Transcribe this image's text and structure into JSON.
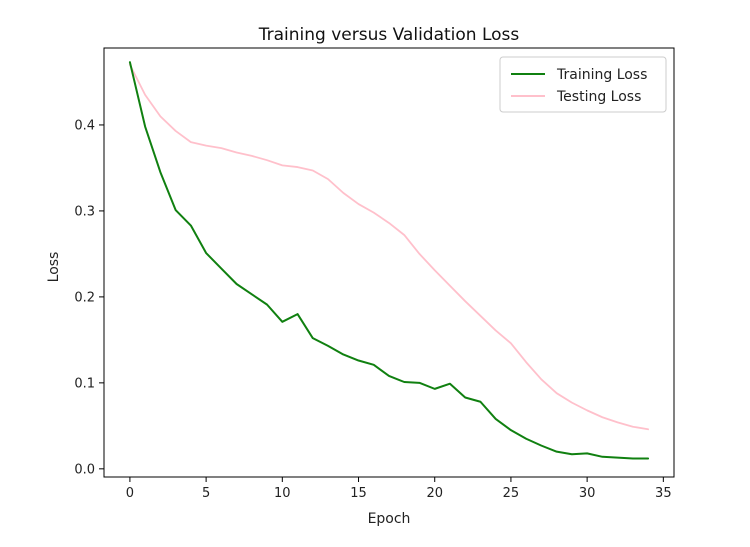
{
  "chart_data": {
    "type": "line",
    "title": "Training versus Validation Loss",
    "xlabel": "Epoch",
    "ylabel": "Loss",
    "xlim": [
      -1.7,
      35.7
    ],
    "ylim": [
      -0.0095,
      0.4895
    ],
    "xticks": [
      0,
      5,
      10,
      15,
      20,
      25,
      30,
      35
    ],
    "yticks": [
      0.0,
      0.1,
      0.2,
      0.3,
      0.4
    ],
    "ytick_labels": [
      "0.0",
      "0.1",
      "0.2",
      "0.3",
      "0.4"
    ],
    "grid": false,
    "legend_position": "top-right",
    "x": [
      0,
      1,
      2,
      3,
      4,
      5,
      6,
      7,
      8,
      9,
      10,
      11,
      12,
      13,
      14,
      15,
      16,
      17,
      18,
      19,
      20,
      21,
      22,
      23,
      24,
      25,
      26,
      27,
      28,
      29,
      30,
      31,
      32,
      33,
      34
    ],
    "series": [
      {
        "name": "Training Loss",
        "color": "#108010",
        "values": [
          0.473,
          0.398,
          0.345,
          0.301,
          0.283,
          0.251,
          0.233,
          0.215,
          0.203,
          0.191,
          0.171,
          0.18,
          0.152,
          0.143,
          0.133,
          0.126,
          0.121,
          0.108,
          0.101,
          0.1,
          0.093,
          0.099,
          0.083,
          0.078,
          0.058,
          0.045,
          0.035,
          0.027,
          0.02,
          0.017,
          0.018,
          0.014,
          0.013,
          0.012,
          0.012
        ]
      },
      {
        "name": "Testing Loss",
        "color": "#ffc0cb",
        "values": [
          0.47,
          0.435,
          0.41,
          0.393,
          0.38,
          0.376,
          0.373,
          0.368,
          0.364,
          0.359,
          0.353,
          0.351,
          0.347,
          0.337,
          0.321,
          0.308,
          0.298,
          0.286,
          0.272,
          0.25,
          0.231,
          0.213,
          0.195,
          0.178,
          0.161,
          0.146,
          0.124,
          0.104,
          0.088,
          0.077,
          0.068,
          0.06,
          0.054,
          0.049,
          0.046
        ]
      }
    ]
  }
}
